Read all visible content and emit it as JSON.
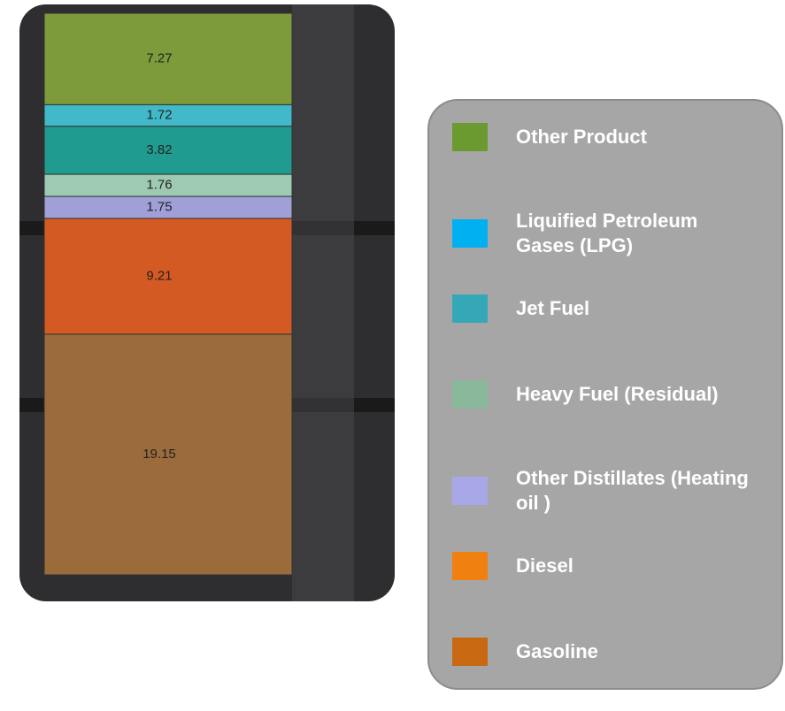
{
  "chart_data": {
    "type": "barrel",
    "categories": [
      "Other Product",
      "Liquified Petroleum Gases (LPG)",
      "Jet Fuel",
      "Heavy Fuel (Residual)",
      "Other Distillates (Heating oil )",
      "Diesel",
      "Gasoline"
    ],
    "values": [
      7.27,
      1.72,
      3.82,
      1.76,
      1.75,
      9.21,
      19.15
    ],
    "colors": [
      "#7d9b3a",
      "#41b9c9",
      "#1f9b8f",
      "#9fcab2",
      "#a09fd8",
      "#d35a22",
      "#9b6b3b"
    ],
    "legend_colors": [
      "#6a9a30",
      "#00b0f0",
      "#35a8b8",
      "#8ab89a",
      "#a8a8e8",
      "#f08010",
      "#c86810"
    ]
  }
}
